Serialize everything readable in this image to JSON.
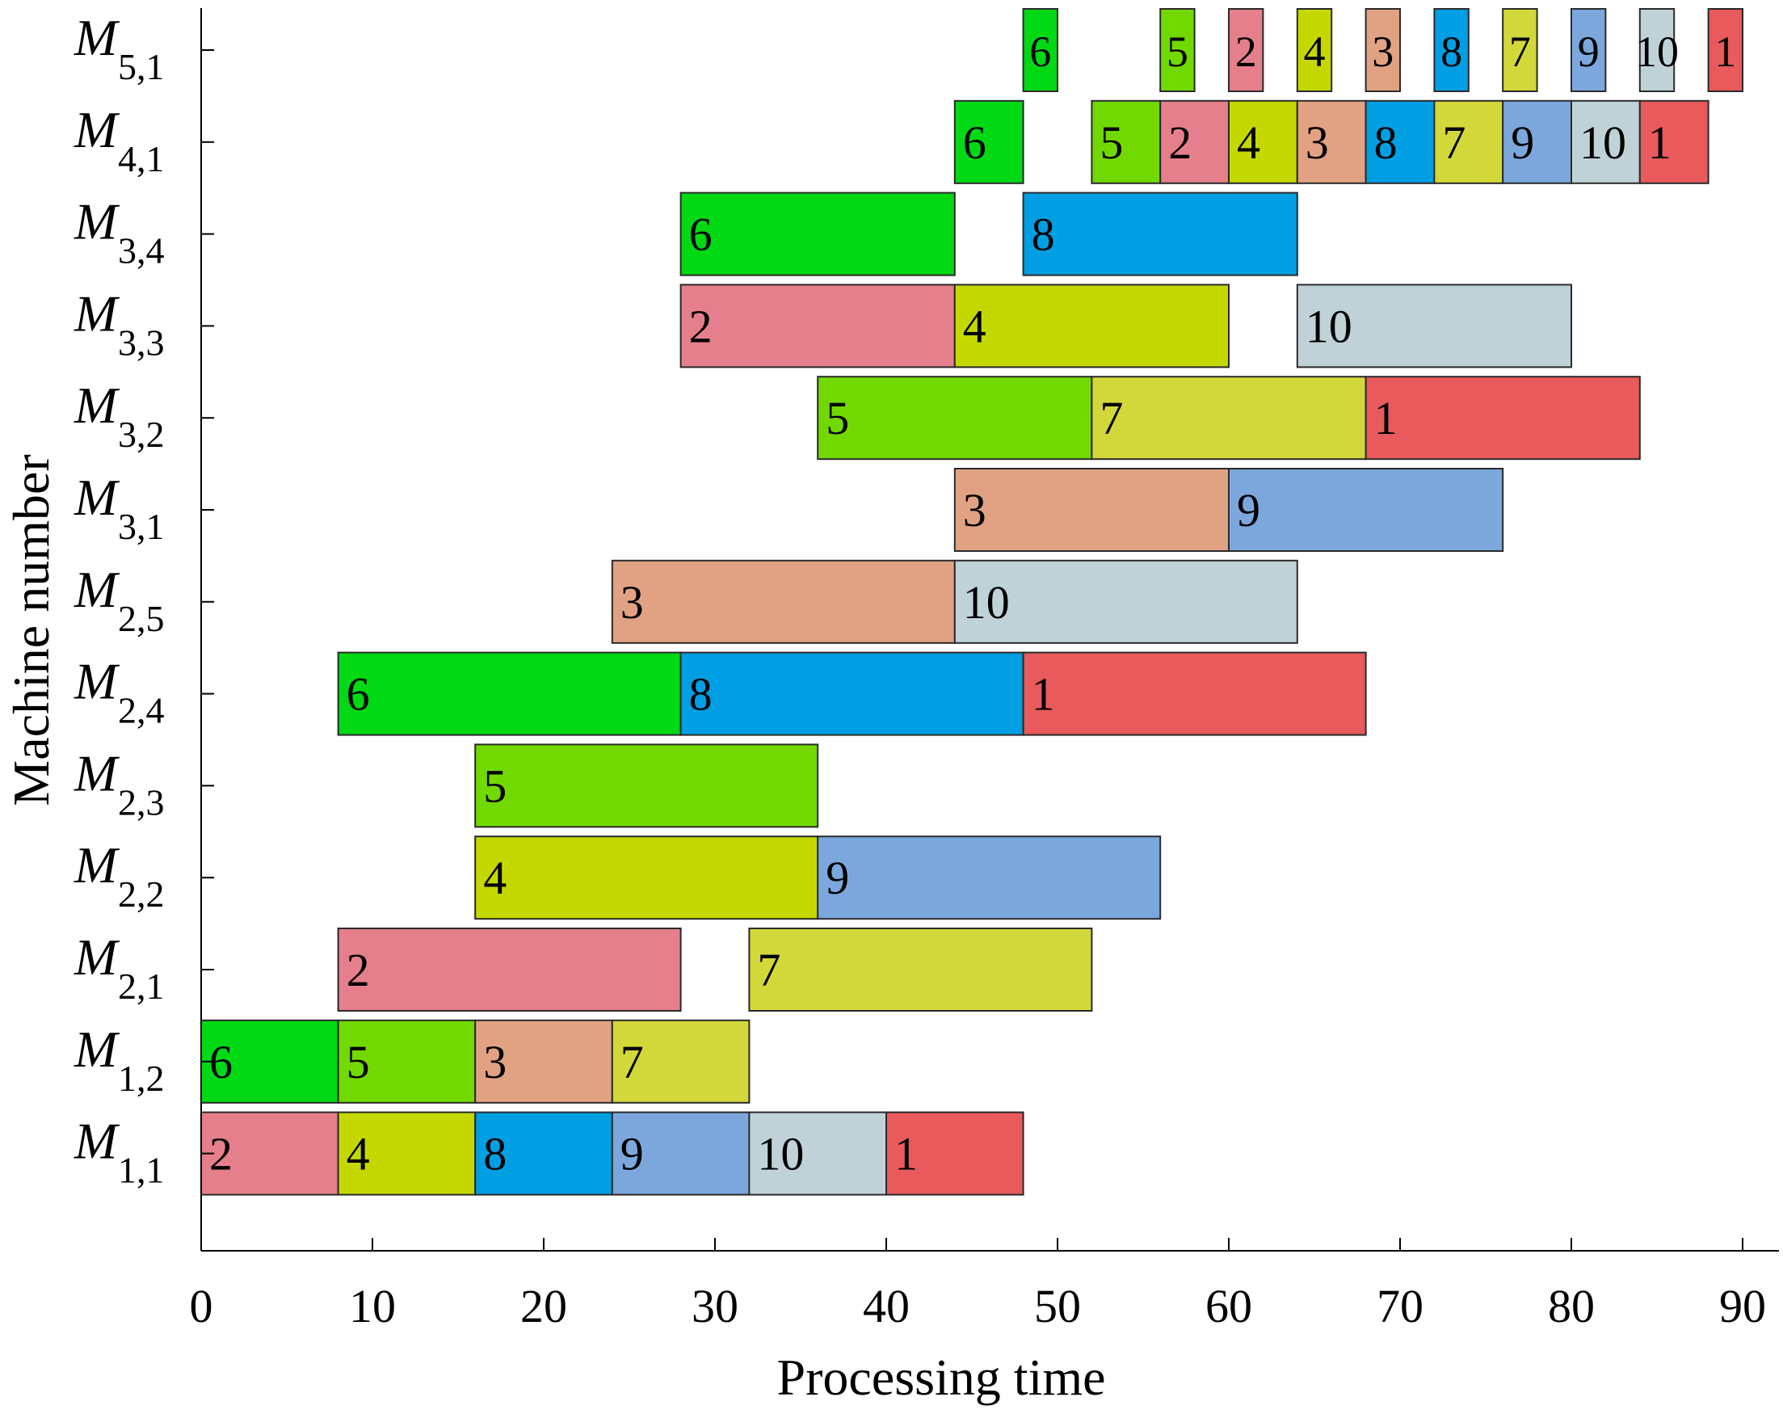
{
  "chart_data": {
    "type": "gantt",
    "title": "",
    "xlabel": "Processing time",
    "ylabel": "Machine number",
    "xlim": [
      0,
      92
    ],
    "x_ticks": [
      "0",
      "10",
      "20",
      "30",
      "40",
      "50",
      "60",
      "70",
      "80",
      "90"
    ],
    "job_colors": {
      "1": "#e85a5c",
      "2": "#e67f8c",
      "3": "#e1a283",
      "4": "#c4d800",
      "5": "#72d900",
      "6": "#00d914",
      "7": "#d3d83a",
      "8": "#009fe3",
      "9": "#7ba7dd",
      "10": "#bfd2d8"
    },
    "machines": [
      {
        "base": "M",
        "sub": "5,1",
        "tasks": [
          {
            "job": "6",
            "start": 48,
            "end": 50
          },
          {
            "job": "5",
            "start": 56,
            "end": 58
          },
          {
            "job": "2",
            "start": 60,
            "end": 62
          },
          {
            "job": "4",
            "start": 64,
            "end": 66
          },
          {
            "job": "3",
            "start": 68,
            "end": 70
          },
          {
            "job": "8",
            "start": 72,
            "end": 74
          },
          {
            "job": "7",
            "start": 76,
            "end": 78
          },
          {
            "job": "9",
            "start": 80,
            "end": 82
          },
          {
            "job": "10",
            "start": 84,
            "end": 86
          },
          {
            "job": "1",
            "start": 88,
            "end": 90
          }
        ]
      },
      {
        "base": "M",
        "sub": "4,1",
        "tasks": [
          {
            "job": "6",
            "start": 44,
            "end": 48
          },
          {
            "job": "5",
            "start": 52,
            "end": 56
          },
          {
            "job": "2",
            "start": 56,
            "end": 60
          },
          {
            "job": "4",
            "start": 60,
            "end": 64
          },
          {
            "job": "3",
            "start": 64,
            "end": 68
          },
          {
            "job": "8",
            "start": 68,
            "end": 72
          },
          {
            "job": "7",
            "start": 72,
            "end": 76
          },
          {
            "job": "9",
            "start": 76,
            "end": 80
          },
          {
            "job": "10",
            "start": 80,
            "end": 84
          },
          {
            "job": "1",
            "start": 84,
            "end": 88
          }
        ]
      },
      {
        "base": "M",
        "sub": "3,4",
        "tasks": [
          {
            "job": "6",
            "start": 28,
            "end": 44
          },
          {
            "job": "8",
            "start": 48,
            "end": 64
          }
        ]
      },
      {
        "base": "M",
        "sub": "3,3",
        "tasks": [
          {
            "job": "2",
            "start": 28,
            "end": 44
          },
          {
            "job": "4",
            "start": 44,
            "end": 60
          },
          {
            "job": "10",
            "start": 64,
            "end": 80
          }
        ]
      },
      {
        "base": "M",
        "sub": "3,2",
        "tasks": [
          {
            "job": "5",
            "start": 36,
            "end": 52
          },
          {
            "job": "7",
            "start": 52,
            "end": 68
          },
          {
            "job": "1",
            "start": 68,
            "end": 84
          }
        ]
      },
      {
        "base": "M",
        "sub": "3,1",
        "tasks": [
          {
            "job": "3",
            "start": 44,
            "end": 60
          },
          {
            "job": "9",
            "start": 60,
            "end": 76
          }
        ]
      },
      {
        "base": "M",
        "sub": "2,5",
        "tasks": [
          {
            "job": "3",
            "start": 24,
            "end": 44
          },
          {
            "job": "10",
            "start": 44,
            "end": 64
          }
        ]
      },
      {
        "base": "M",
        "sub": "2,4",
        "tasks": [
          {
            "job": "6",
            "start": 8,
            "end": 28
          },
          {
            "job": "8",
            "start": 28,
            "end": 48
          },
          {
            "job": "1",
            "start": 48,
            "end": 68
          }
        ]
      },
      {
        "base": "M",
        "sub": "2,3",
        "tasks": [
          {
            "job": "5",
            "start": 16,
            "end": 36
          }
        ]
      },
      {
        "base": "M",
        "sub": "2,2",
        "tasks": [
          {
            "job": "4",
            "start": 16,
            "end": 36
          },
          {
            "job": "9",
            "start": 36,
            "end": 56
          }
        ]
      },
      {
        "base": "M",
        "sub": "2,1",
        "tasks": [
          {
            "job": "2",
            "start": 8,
            "end": 28
          },
          {
            "job": "7",
            "start": 32,
            "end": 52
          }
        ]
      },
      {
        "base": "M",
        "sub": "1,2",
        "tasks": [
          {
            "job": "6",
            "start": 0,
            "end": 8
          },
          {
            "job": "5",
            "start": 8,
            "end": 16
          },
          {
            "job": "3",
            "start": 16,
            "end": 24
          },
          {
            "job": "7",
            "start": 24,
            "end": 32
          }
        ]
      },
      {
        "base": "M",
        "sub": "1,1",
        "tasks": [
          {
            "job": "2",
            "start": 0,
            "end": 8
          },
          {
            "job": "4",
            "start": 8,
            "end": 16
          },
          {
            "job": "8",
            "start": 16,
            "end": 24
          },
          {
            "job": "9",
            "start": 24,
            "end": 32
          },
          {
            "job": "10",
            "start": 32,
            "end": 40
          },
          {
            "job": "1",
            "start": 40,
            "end": 48
          }
        ]
      }
    ]
  }
}
